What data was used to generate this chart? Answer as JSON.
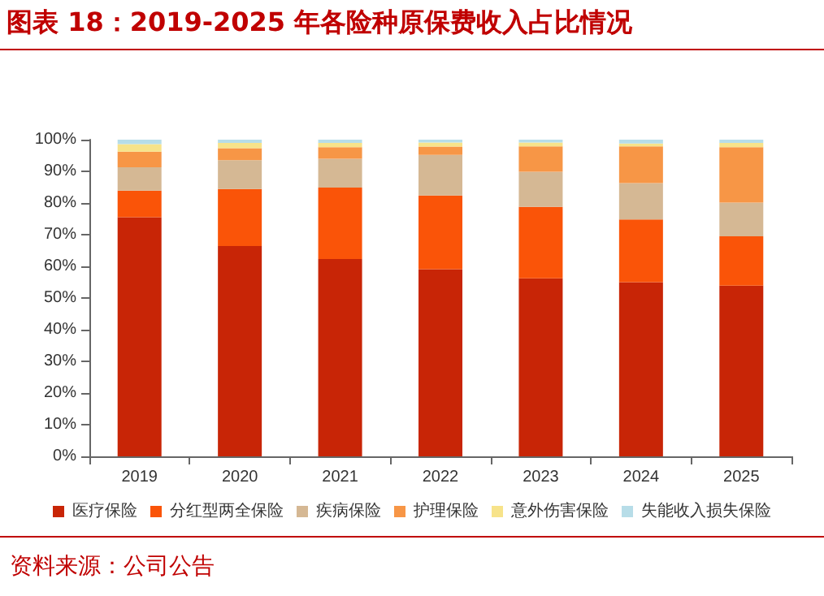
{
  "chart_data": {
    "type": "bar",
    "title": "图表 18：2019-2025 年各险种原保费收入占比情况",
    "stacked": true,
    "categories": [
      "2019",
      "2020",
      "2021",
      "2022",
      "2023",
      "2024",
      "2025"
    ],
    "series": [
      {
        "name": "医疗保险",
        "color": "#c82506",
        "values": [
          75.5,
          66.4,
          62.3,
          59.1,
          56.2,
          55.0,
          53.9
        ]
      },
      {
        "name": "分红型两全保险",
        "color": "#fa5408",
        "values": [
          8.4,
          18.0,
          22.6,
          23.3,
          22.6,
          19.8,
          15.6
        ]
      },
      {
        "name": "疾病保险",
        "color": "#d5b894",
        "values": [
          7.4,
          9.1,
          9.1,
          12.8,
          11.1,
          11.5,
          10.6
        ]
      },
      {
        "name": "护理保险",
        "color": "#f79646",
        "values": [
          4.9,
          3.8,
          3.6,
          2.6,
          8.0,
          11.6,
          17.5
        ]
      },
      {
        "name": "意外伤害保险",
        "color": "#f7e38a",
        "values": [
          2.4,
          1.7,
          1.4,
          1.3,
          1.2,
          0.9,
          1.4
        ]
      },
      {
        "name": "失能收入损失保险",
        "color": "#b7dde8",
        "values": [
          1.4,
          1.0,
          1.0,
          0.9,
          0.9,
          1.2,
          1.0
        ]
      }
    ],
    "ylim": [
      0,
      100
    ],
    "yticks": [
      {
        "value": 0,
        "label": "0%"
      },
      {
        "value": 10,
        "label": "10%"
      },
      {
        "value": 20,
        "label": "20%"
      },
      {
        "value": 30,
        "label": "30%"
      },
      {
        "value": 40,
        "label": "40%"
      },
      {
        "value": 50,
        "label": "50%"
      },
      {
        "value": 60,
        "label": "60%"
      },
      {
        "value": 70,
        "label": "70%"
      },
      {
        "value": 80,
        "label": "80%"
      },
      {
        "value": 90,
        "label": "90%"
      },
      {
        "value": 100,
        "label": "100%"
      }
    ],
    "grid": false,
    "legend": "bottom",
    "annotations": [
      "资料来源：公司公告"
    ]
  }
}
